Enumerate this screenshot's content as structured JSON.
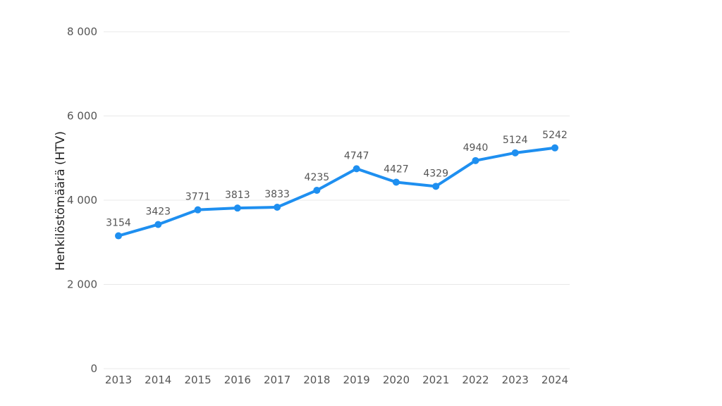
{
  "chart_data": {
    "type": "line",
    "title": "",
    "xlabel": "",
    "ylabel": "Henkilöstömäärä (HTV)",
    "x": [
      "2013",
      "2014",
      "2015",
      "2016",
      "2017",
      "2018",
      "2019",
      "2020",
      "2021",
      "2022",
      "2023",
      "2024"
    ],
    "series": [
      {
        "values": [
          3154,
          3423,
          3771,
          3813,
          3833,
          4235,
          4747,
          4427,
          4329,
          4940,
          5124,
          5242
        ],
        "color": "#1e8ff0"
      }
    ],
    "y_ticks": [
      "0",
      "2 000",
      "4 000",
      "6 000",
      "8 000"
    ],
    "y_tick_values": [
      0,
      2000,
      4000,
      6000,
      8000
    ],
    "ylim": [
      0,
      8000
    ],
    "grid": true,
    "data_labels": true
  }
}
